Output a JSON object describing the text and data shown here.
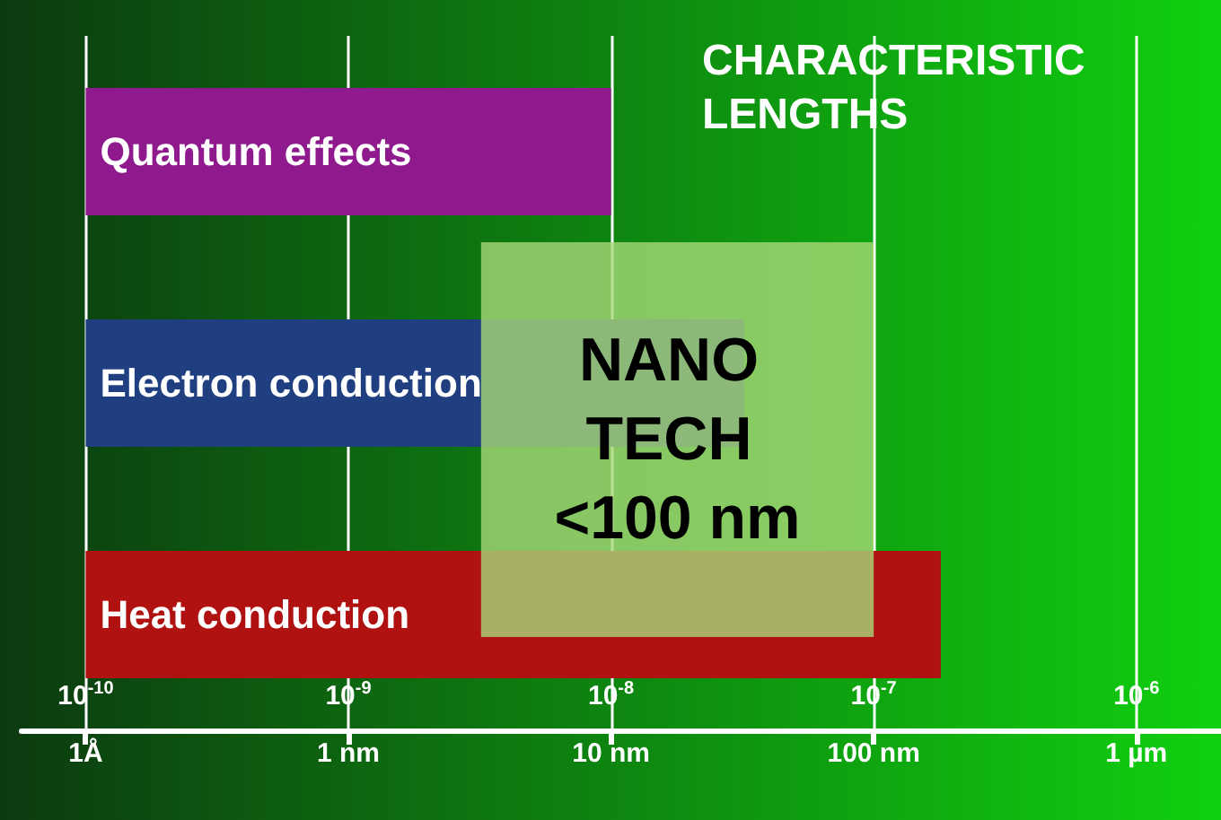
{
  "chart_data": {
    "type": "bar",
    "orientation": "horizontal",
    "title": "CHARACTERISTIC LENGTHS",
    "categories": [
      "Quantum effects",
      "Electron conduction",
      "Heat conduction"
    ],
    "base": [
      1e-10,
      1e-10,
      1e-10
    ],
    "values": [
      9.9e-09,
      3.2e-08,
      1.8e-07
    ],
    "colors": [
      "#8e1a8e",
      "#1f3f80",
      "#b01212"
    ],
    "log": "x",
    "xlim": [
      5.7e-11,
      2.1e-06
    ],
    "xticks": [
      {
        "value": 1e-10,
        "label": "10$^{-10}$"
      },
      {
        "value": 1e-09,
        "label": "10$^{-9}$"
      },
      {
        "value": 1e-08,
        "label": "10$^{-8}$"
      },
      {
        "value": 1e-07,
        "label": "10$^{-7}$"
      },
      {
        "value": 1e-06,
        "label": "10$^{-6}$"
      }
    ],
    "annotations": [
      "1Å",
      "1 nm",
      "10 nm",
      "100 nm",
      "1 µm"
    ],
    "bands": [
      {
        "axis": "x",
        "from": 3.2e-09,
        "to": 1e-07,
        "label": "NANO TECH <100 nm",
        "color": "#a8d878"
      }
    ],
    "grid": "x",
    "legend": false,
    "tick_labels": "x"
  }
}
